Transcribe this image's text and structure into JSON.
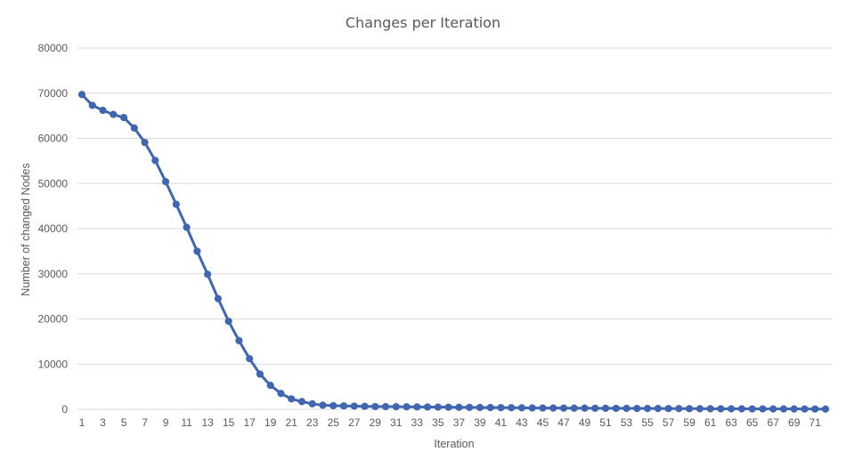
{
  "chart_data": {
    "type": "line",
    "title": "Changes per Iteration",
    "xlabel": "Iteration",
    "ylabel": "Number of changed Nodes",
    "ylim": [
      0,
      80000
    ],
    "yticks": [
      0,
      10000,
      20000,
      30000,
      40000,
      50000,
      60000,
      70000,
      80000
    ],
    "xticks": [
      1,
      3,
      5,
      7,
      9,
      11,
      13,
      15,
      17,
      19,
      21,
      23,
      25,
      27,
      29,
      31,
      33,
      35,
      37,
      39,
      41,
      43,
      45,
      47,
      49,
      51,
      53,
      55,
      57,
      59,
      61,
      63,
      65,
      67,
      69,
      71
    ],
    "xlim": [
      1,
      72
    ],
    "grid": true,
    "legend": "none",
    "colors": {
      "series": "#4166b0",
      "grid": "#d9d9d9",
      "text": "#595959"
    },
    "series": [
      {
        "x": [
          1,
          2,
          3,
          4,
          5,
          6,
          7,
          8,
          9,
          10,
          11,
          12,
          13,
          14,
          15,
          16,
          17,
          18,
          19,
          20,
          21,
          22,
          23,
          24,
          25,
          26,
          27,
          28,
          29,
          30,
          31,
          32,
          33,
          34,
          35,
          36,
          37,
          38,
          39,
          40,
          41,
          42,
          43,
          44,
          45,
          46,
          47,
          48,
          49,
          50,
          51,
          52,
          53,
          54,
          55,
          56,
          57,
          58,
          59,
          60,
          61,
          62,
          63,
          64,
          65,
          66,
          67,
          68,
          69,
          70,
          71,
          72
        ],
        "values": [
          69700,
          67300,
          66200,
          65300,
          64600,
          62300,
          59100,
          55100,
          50400,
          45400,
          40300,
          35000,
          29900,
          24500,
          19500,
          15200,
          11200,
          7800,
          5300,
          3500,
          2300,
          1700,
          1200,
          900,
          800,
          750,
          700,
          650,
          600,
          580,
          560,
          540,
          520,
          500,
          480,
          460,
          440,
          420,
          400,
          380,
          360,
          340,
          320,
          300,
          280,
          270,
          260,
          250,
          240,
          230,
          220,
          210,
          200,
          190,
          180,
          170,
          160,
          150,
          140,
          130,
          120,
          110,
          100,
          95,
          90,
          85,
          80,
          75,
          70,
          65,
          60,
          55
        ]
      }
    ]
  }
}
